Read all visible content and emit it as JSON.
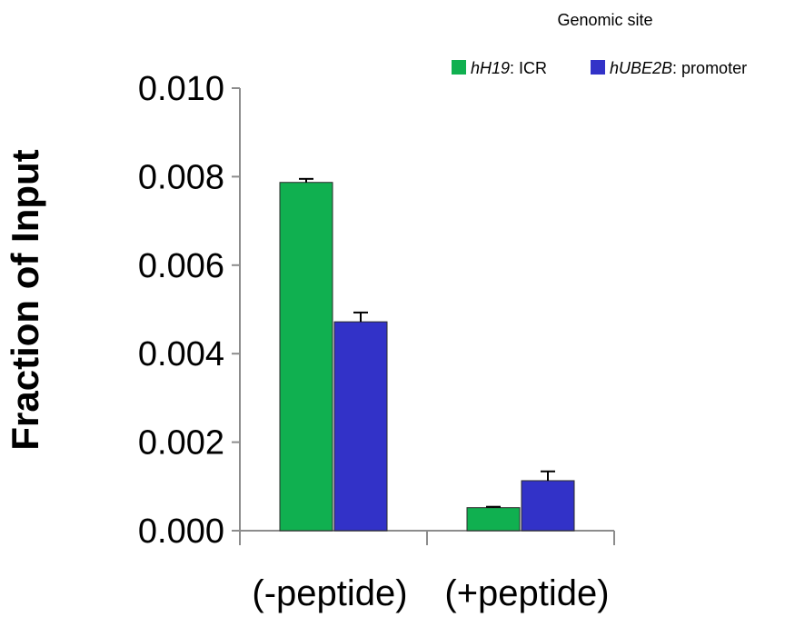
{
  "chart_data": {
    "type": "bar",
    "ylabel": "Fraction of  Input",
    "ylim": [
      0,
      0.01
    ],
    "yticks": [
      "0.000",
      "0.002",
      "0.004",
      "0.006",
      "0.008",
      "0.010"
    ],
    "categories": [
      "(-peptide)",
      "(+peptide)"
    ],
    "legend_title": "Genomic site",
    "legend_position": "top-right",
    "grid": false,
    "series": [
      {
        "name_italic": "hH19",
        "name_rest": ": ICR",
        "color": "#10b050",
        "values": [
          0.00787,
          0.00052
        ],
        "errors": [
          8e-05,
          2e-05
        ]
      },
      {
        "name_italic": "hUBE2B",
        "name_rest": ": promoter",
        "color": "#3232c8",
        "values": [
          0.00472,
          0.00113
        ],
        "errors": [
          0.00021,
          0.00021
        ]
      }
    ]
  }
}
